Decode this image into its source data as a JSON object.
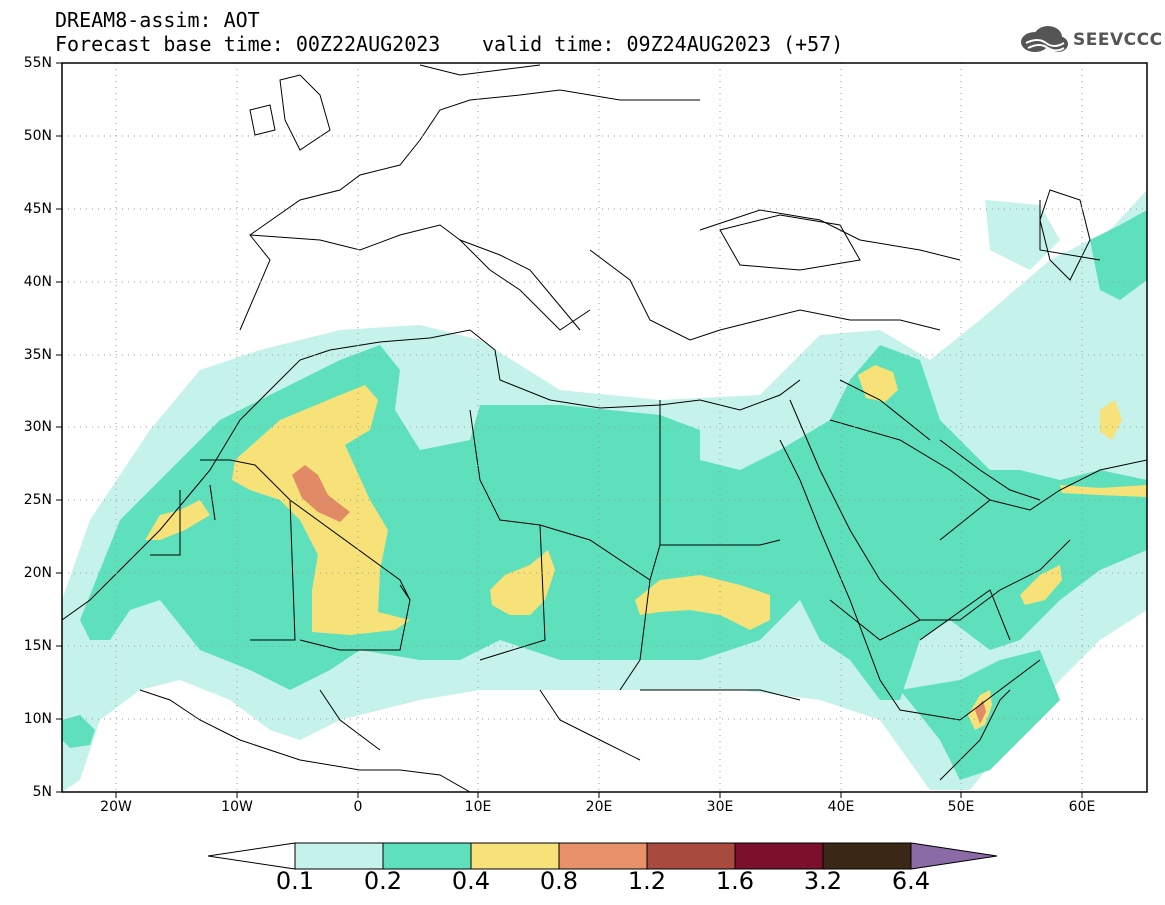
{
  "header": {
    "title": "DREAM8-assim: AOT",
    "base_time": "Forecast base time: 00Z22AUG2023",
    "valid_time": "valid time: 09Z24AUG2023 (+57)"
  },
  "logo": {
    "text": "SEEVCCC",
    "icon": "cloud-logo-icon"
  },
  "map": {
    "lat_labels": [
      "55N",
      "50N",
      "45N",
      "40N",
      "35N",
      "30N",
      "25N",
      "20N",
      "15N",
      "10N",
      "5N"
    ],
    "lon_labels": [
      "20W",
      "10W",
      "0",
      "10E",
      "20E",
      "30E",
      "40E",
      "50E",
      "60E"
    ],
    "lon_range": [
      -25,
      65
    ],
    "lat_range": [
      5,
      55
    ]
  },
  "colorbar": {
    "labels": [
      "0.1",
      "0.2",
      "0.4",
      "0.8",
      "1.2",
      "1.6",
      "3.2",
      "6.4"
    ],
    "colors": [
      "#ffffff",
      "#c5f2ea",
      "#5fe0bc",
      "#f7e27a",
      "#e8906a",
      "#a94a3f",
      "#7b0f2c",
      "#3a2716",
      "#8b6aa8"
    ]
  }
}
